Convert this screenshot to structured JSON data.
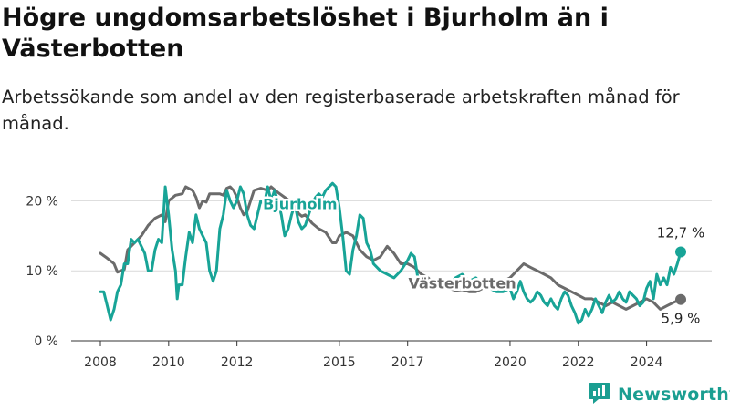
{
  "header": {
    "title": "Högre ungdomsarbetslöshet i Bjurholm än i Västerbotten",
    "subtitle": "Arbetssökande som andel av den registerbaserade arbetskraften månad för månad."
  },
  "brand": {
    "name": "Newsworthy",
    "icon": "newsworthy-logo-icon",
    "color": "#1a9e91"
  },
  "chart_data": {
    "type": "line",
    "title": "Högre ungdomsarbetslöshet i Bjurholm än i Västerbotten",
    "subtitle": "Arbetssökande som andel av den registerbaserade arbetskraften månad för månad.",
    "xlabel": "",
    "ylabel": "",
    "ylim": [
      0,
      25
    ],
    "xlim": [
      2007.8,
      2025.2
    ],
    "x_ticks": [
      2008,
      2010,
      2012,
      2015,
      2017,
      2020,
      2022,
      2024
    ],
    "x_tick_labels": [
      "2008",
      "2010",
      "2012",
      "2015",
      "2017",
      "2020",
      "2022",
      "2024"
    ],
    "y_ticks": [
      0,
      10,
      20
    ],
    "y_tick_labels": [
      "0 %",
      "10 %",
      "20 %"
    ],
    "grid": "horizontal",
    "legend": "inline labels",
    "series": [
      {
        "name": "Västerbotten",
        "color": "#6b6b6b",
        "end_label": "5,9 %",
        "points": [
          [
            2008.0,
            12.5
          ],
          [
            2008.2,
            11.8
          ],
          [
            2008.4,
            11.0
          ],
          [
            2008.5,
            9.8
          ],
          [
            2008.7,
            10.2
          ],
          [
            2008.8,
            13.0
          ],
          [
            2009.0,
            14.0
          ],
          [
            2009.2,
            15.0
          ],
          [
            2009.4,
            16.5
          ],
          [
            2009.6,
            17.5
          ],
          [
            2009.8,
            18.0
          ],
          [
            2009.9,
            17.0
          ],
          [
            2010.0,
            20.0
          ],
          [
            2010.2,
            20.8
          ],
          [
            2010.4,
            21.0
          ],
          [
            2010.5,
            22.0
          ],
          [
            2010.7,
            21.5
          ],
          [
            2010.8,
            20.5
          ],
          [
            2010.9,
            19.0
          ],
          [
            2011.0,
            20.0
          ],
          [
            2011.1,
            19.8
          ],
          [
            2011.2,
            21.0
          ],
          [
            2011.4,
            21.0
          ],
          [
            2011.5,
            21.0
          ],
          [
            2011.6,
            20.8
          ],
          [
            2011.7,
            21.8
          ],
          [
            2011.8,
            22.0
          ],
          [
            2011.9,
            21.5
          ],
          [
            2012.0,
            20.5
          ],
          [
            2012.1,
            19.0
          ],
          [
            2012.2,
            18.0
          ],
          [
            2012.3,
            18.5
          ],
          [
            2012.4,
            20.0
          ],
          [
            2012.5,
            21.5
          ],
          [
            2012.7,
            21.8
          ],
          [
            2012.9,
            21.5
          ],
          [
            2013.0,
            22.0
          ],
          [
            2013.2,
            21.2
          ],
          [
            2013.4,
            20.5
          ],
          [
            2013.6,
            19.8
          ],
          [
            2013.7,
            19.5
          ],
          [
            2013.8,
            18.2
          ],
          [
            2013.9,
            17.8
          ],
          [
            2014.0,
            18.0
          ],
          [
            2014.2,
            16.8
          ],
          [
            2014.4,
            16.0
          ],
          [
            2014.6,
            15.5
          ],
          [
            2014.8,
            14.0
          ],
          [
            2014.9,
            14.0
          ],
          [
            2015.0,
            15.0
          ],
          [
            2015.2,
            15.5
          ],
          [
            2015.4,
            15.0
          ],
          [
            2015.5,
            14.0
          ],
          [
            2015.6,
            13.0
          ],
          [
            2015.8,
            12.0
          ],
          [
            2016.0,
            11.5
          ],
          [
            2016.2,
            12.0
          ],
          [
            2016.4,
            13.5
          ],
          [
            2016.5,
            13.0
          ],
          [
            2016.6,
            12.5
          ],
          [
            2016.8,
            11.0
          ],
          [
            2017.0,
            11.0
          ],
          [
            2017.2,
            10.5
          ],
          [
            2017.4,
            9.5
          ],
          [
            2017.6,
            9.0
          ],
          [
            2017.8,
            8.0
          ],
          [
            2018.0,
            7.5
          ],
          [
            2018.2,
            7.5
          ],
          [
            2018.4,
            7.2
          ],
          [
            2018.6,
            7.3
          ],
          [
            2018.8,
            7.0
          ],
          [
            2019.0,
            7.0
          ],
          [
            2019.2,
            7.5
          ],
          [
            2019.4,
            7.8
          ],
          [
            2019.6,
            8.0
          ],
          [
            2019.8,
            8.5
          ],
          [
            2020.0,
            9.0
          ],
          [
            2020.2,
            10.0
          ],
          [
            2020.4,
            11.0
          ],
          [
            2020.6,
            10.5
          ],
          [
            2020.8,
            10.0
          ],
          [
            2021.0,
            9.5
          ],
          [
            2021.2,
            9.0
          ],
          [
            2021.4,
            8.0
          ],
          [
            2021.6,
            7.5
          ],
          [
            2021.8,
            7.0
          ],
          [
            2022.0,
            6.5
          ],
          [
            2022.2,
            6.0
          ],
          [
            2022.4,
            6.0
          ],
          [
            2022.6,
            5.5
          ],
          [
            2022.8,
            5.0
          ],
          [
            2023.0,
            5.5
          ],
          [
            2023.2,
            5.0
          ],
          [
            2023.4,
            4.5
          ],
          [
            2023.6,
            5.0
          ],
          [
            2023.8,
            5.5
          ],
          [
            2024.0,
            6.0
          ],
          [
            2024.2,
            5.5
          ],
          [
            2024.4,
            4.5
          ],
          [
            2024.6,
            5.0
          ],
          [
            2024.8,
            5.5
          ],
          [
            2025.0,
            5.9
          ]
        ]
      },
      {
        "name": "Bjurholm",
        "color": "#18a497",
        "end_label": "12,7 %",
        "points": [
          [
            2008.0,
            7.0
          ],
          [
            2008.1,
            7.0
          ],
          [
            2008.2,
            5.0
          ],
          [
            2008.3,
            3.0
          ],
          [
            2008.4,
            4.5
          ],
          [
            2008.5,
            7.0
          ],
          [
            2008.6,
            8.0
          ],
          [
            2008.7,
            11.0
          ],
          [
            2008.8,
            11.0
          ],
          [
            2008.9,
            14.5
          ],
          [
            2009.0,
            14.0
          ],
          [
            2009.1,
            14.5
          ],
          [
            2009.2,
            13.5
          ],
          [
            2009.3,
            12.5
          ],
          [
            2009.4,
            10.0
          ],
          [
            2009.5,
            10.0
          ],
          [
            2009.6,
            13.0
          ],
          [
            2009.7,
            14.5
          ],
          [
            2009.8,
            14.0
          ],
          [
            2009.9,
            22.0
          ],
          [
            2010.0,
            18.0
          ],
          [
            2010.1,
            13.0
          ],
          [
            2010.2,
            10.0
          ],
          [
            2010.25,
            6.0
          ],
          [
            2010.3,
            8.0
          ],
          [
            2010.4,
            8.0
          ],
          [
            2010.5,
            12.0
          ],
          [
            2010.6,
            15.5
          ],
          [
            2010.7,
            14.0
          ],
          [
            2010.8,
            18.0
          ],
          [
            2010.9,
            16.0
          ],
          [
            2011.0,
            15.0
          ],
          [
            2011.1,
            14.0
          ],
          [
            2011.2,
            10.0
          ],
          [
            2011.3,
            8.5
          ],
          [
            2011.4,
            10.0
          ],
          [
            2011.5,
            16.0
          ],
          [
            2011.6,
            18.0
          ],
          [
            2011.7,
            21.5
          ],
          [
            2011.8,
            20.0
          ],
          [
            2011.9,
            19.0
          ],
          [
            2012.0,
            20.0
          ],
          [
            2012.1,
            22.0
          ],
          [
            2012.2,
            21.0
          ],
          [
            2012.3,
            18.0
          ],
          [
            2012.4,
            16.5
          ],
          [
            2012.5,
            16.0
          ],
          [
            2012.6,
            18.0
          ],
          [
            2012.7,
            20.0
          ],
          [
            2012.8,
            19.5
          ],
          [
            2012.9,
            22.0
          ],
          [
            2013.0,
            20.0
          ],
          [
            2013.1,
            21.5
          ],
          [
            2013.2,
            20.0
          ],
          [
            2013.3,
            18.0
          ],
          [
            2013.4,
            15.0
          ],
          [
            2013.5,
            16.0
          ],
          [
            2013.6,
            18.0
          ],
          [
            2013.7,
            19.5
          ],
          [
            2013.8,
            17.0
          ],
          [
            2013.9,
            16.0
          ],
          [
            2014.0,
            16.5
          ],
          [
            2014.1,
            18.0
          ],
          [
            2014.2,
            19.5
          ],
          [
            2014.3,
            20.5
          ],
          [
            2014.4,
            21.0
          ],
          [
            2014.5,
            20.5
          ],
          [
            2014.6,
            21.5
          ],
          [
            2014.7,
            22.0
          ],
          [
            2014.8,
            22.5
          ],
          [
            2014.9,
            22.0
          ],
          [
            2015.0,
            19.0
          ],
          [
            2015.1,
            15.0
          ],
          [
            2015.2,
            10.0
          ],
          [
            2015.3,
            9.5
          ],
          [
            2015.4,
            13.0
          ],
          [
            2015.5,
            15.0
          ],
          [
            2015.6,
            18.0
          ],
          [
            2015.7,
            17.5
          ],
          [
            2015.8,
            14.0
          ],
          [
            2015.9,
            13.0
          ],
          [
            2016.0,
            11.0
          ],
          [
            2016.2,
            10.0
          ],
          [
            2016.4,
            9.5
          ],
          [
            2016.6,
            9.0
          ],
          [
            2016.8,
            10.0
          ],
          [
            2017.0,
            11.5
          ],
          [
            2017.1,
            12.5
          ],
          [
            2017.2,
            12.0
          ],
          [
            2017.3,
            9.0
          ],
          [
            2017.4,
            8.0
          ],
          [
            2017.6,
            7.5
          ],
          [
            2017.8,
            8.0
          ],
          [
            2018.0,
            8.5
          ],
          [
            2018.2,
            8.0
          ],
          [
            2018.4,
            9.0
          ],
          [
            2018.6,
            9.5
          ],
          [
            2018.8,
            8.5
          ],
          [
            2019.0,
            9.0
          ],
          [
            2019.2,
            8.0
          ],
          [
            2019.4,
            7.5
          ],
          [
            2019.6,
            7.0
          ],
          [
            2019.8,
            7.0
          ],
          [
            2020.0,
            7.5
          ],
          [
            2020.1,
            6.0
          ],
          [
            2020.2,
            7.0
          ],
          [
            2020.3,
            8.5
          ],
          [
            2020.4,
            7.0
          ],
          [
            2020.5,
            6.0
          ],
          [
            2020.6,
            5.5
          ],
          [
            2020.7,
            6.0
          ],
          [
            2020.8,
            7.0
          ],
          [
            2020.9,
            6.5
          ],
          [
            2021.0,
            5.5
          ],
          [
            2021.1,
            5.0
          ],
          [
            2021.2,
            6.0
          ],
          [
            2021.3,
            5.0
          ],
          [
            2021.4,
            4.5
          ],
          [
            2021.5,
            6.0
          ],
          [
            2021.6,
            7.0
          ],
          [
            2021.7,
            6.5
          ],
          [
            2021.8,
            5.0
          ],
          [
            2021.9,
            4.0
          ],
          [
            2022.0,
            2.5
          ],
          [
            2022.1,
            3.0
          ],
          [
            2022.2,
            4.5
          ],
          [
            2022.3,
            3.5
          ],
          [
            2022.4,
            4.5
          ],
          [
            2022.5,
            6.0
          ],
          [
            2022.6,
            5.0
          ],
          [
            2022.7,
            4.0
          ],
          [
            2022.8,
            5.5
          ],
          [
            2022.9,
            6.5
          ],
          [
            2023.0,
            5.5
          ],
          [
            2023.1,
            6.0
          ],
          [
            2023.2,
            7.0
          ],
          [
            2023.3,
            6.0
          ],
          [
            2023.4,
            5.5
          ],
          [
            2023.5,
            7.0
          ],
          [
            2023.6,
            6.5
          ],
          [
            2023.7,
            6.0
          ],
          [
            2023.8,
            5.0
          ],
          [
            2023.9,
            5.5
          ],
          [
            2024.0,
            7.5
          ],
          [
            2024.1,
            8.5
          ],
          [
            2024.2,
            6.0
          ],
          [
            2024.3,
            9.5
          ],
          [
            2024.4,
            8.0
          ],
          [
            2024.5,
            9.0
          ],
          [
            2024.6,
            8.0
          ],
          [
            2024.7,
            10.5
          ],
          [
            2024.8,
            9.5
          ],
          [
            2024.9,
            11.0
          ],
          [
            2025.0,
            12.7
          ]
        ]
      }
    ]
  }
}
